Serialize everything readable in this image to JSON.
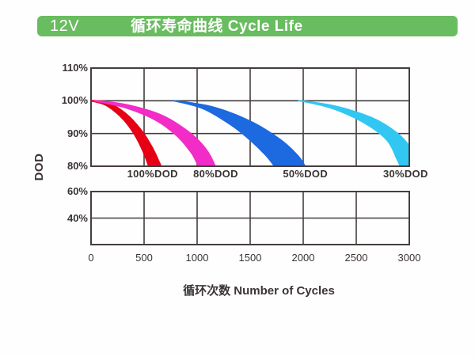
{
  "header": {
    "badge": "12V",
    "title": "循环寿命曲线 Cycle Life",
    "bar_color": "#69bc5f",
    "text_color": "#ffffff"
  },
  "chart_data": {
    "type": "area",
    "title": "循环寿命曲线 Cycle Life",
    "xlabel": "循环次数  Number of Cycles",
    "ylabel": "DOD",
    "grid": true,
    "xlim": [
      0,
      3000
    ],
    "x_ticks": [
      0,
      500,
      1000,
      1500,
      2000,
      2500,
      3000
    ],
    "x_tick_labels": [
      "0",
      "500",
      "1000",
      "1500",
      "2000",
      "2500",
      "3000"
    ],
    "upper_panel": {
      "ylim": [
        80,
        110
      ],
      "y_ticks": [
        110,
        100,
        90,
        80
      ],
      "y_tick_labels": [
        "110%",
        "100%",
        "90%",
        "80%"
      ],
      "gridline_values": [
        100,
        90
      ]
    },
    "lower_panel": {
      "ylim": [
        20,
        60
      ],
      "y_ticks": [
        60,
        40
      ],
      "y_tick_labels": [
        "60%",
        "40%"
      ],
      "gridline_values": [
        40
      ]
    },
    "grid_color": "#443e3d",
    "series": [
      {
        "id": "100dod",
        "label": "100%DOD",
        "color": "#e60016",
        "label_cycles": 580,
        "upper_edge": [
          [
            0,
            100.3
          ],
          [
            160,
            99.7
          ],
          [
            330,
            96.3
          ],
          [
            470,
            91.5
          ],
          [
            580,
            86
          ],
          [
            668,
            80
          ]
        ],
        "lower_edge": [
          [
            0,
            99.8
          ],
          [
            140,
            98.4
          ],
          [
            290,
            94.5
          ],
          [
            400,
            89.8
          ],
          [
            480,
            84.8
          ],
          [
            538,
            80
          ]
        ]
      },
      {
        "id": "80dod",
        "label": "80%DOD",
        "color": "#f22cc6",
        "label_cycles": 1175,
        "upper_edge": [
          [
            30,
            100.3
          ],
          [
            350,
            98.9
          ],
          [
            680,
            95.6
          ],
          [
            950,
            90
          ],
          [
            1100,
            84.8
          ],
          [
            1178,
            80
          ]
        ],
        "lower_edge": [
          [
            25,
            99.8
          ],
          [
            320,
            97.7
          ],
          [
            600,
            94
          ],
          [
            800,
            89.3
          ],
          [
            940,
            84
          ],
          [
            1005,
            80
          ]
        ]
      },
      {
        "id": "50dod",
        "label": "50%DOD",
        "color": "#1c69e0",
        "label_cycles": 2020,
        "upper_edge": [
          [
            775,
            100.3
          ],
          [
            1150,
            98.3
          ],
          [
            1500,
            94
          ],
          [
            1780,
            88.5
          ],
          [
            1950,
            83.5
          ],
          [
            2025,
            80
          ]
        ],
        "lower_edge": [
          [
            768,
            99.9
          ],
          [
            1040,
            97.6
          ],
          [
            1290,
            93
          ],
          [
            1480,
            88.3
          ],
          [
            1640,
            83.3
          ],
          [
            1722,
            80
          ]
        ]
      },
      {
        "id": "30dod",
        "label": "30%DOD",
        "color": "#31c7f2",
        "label_cycles": 2965,
        "upper_edge": [
          [
            1955,
            100.3
          ],
          [
            2300,
            98.6
          ],
          [
            2650,
            95
          ],
          [
            2900,
            90
          ],
          [
            3060,
            84
          ],
          [
            3150,
            80
          ]
        ],
        "lower_edge": [
          [
            1950,
            99.9
          ],
          [
            2260,
            97.6
          ],
          [
            2560,
            93.3
          ],
          [
            2780,
            88
          ],
          [
            2880,
            82
          ],
          [
            2908,
            80
          ]
        ]
      }
    ]
  }
}
